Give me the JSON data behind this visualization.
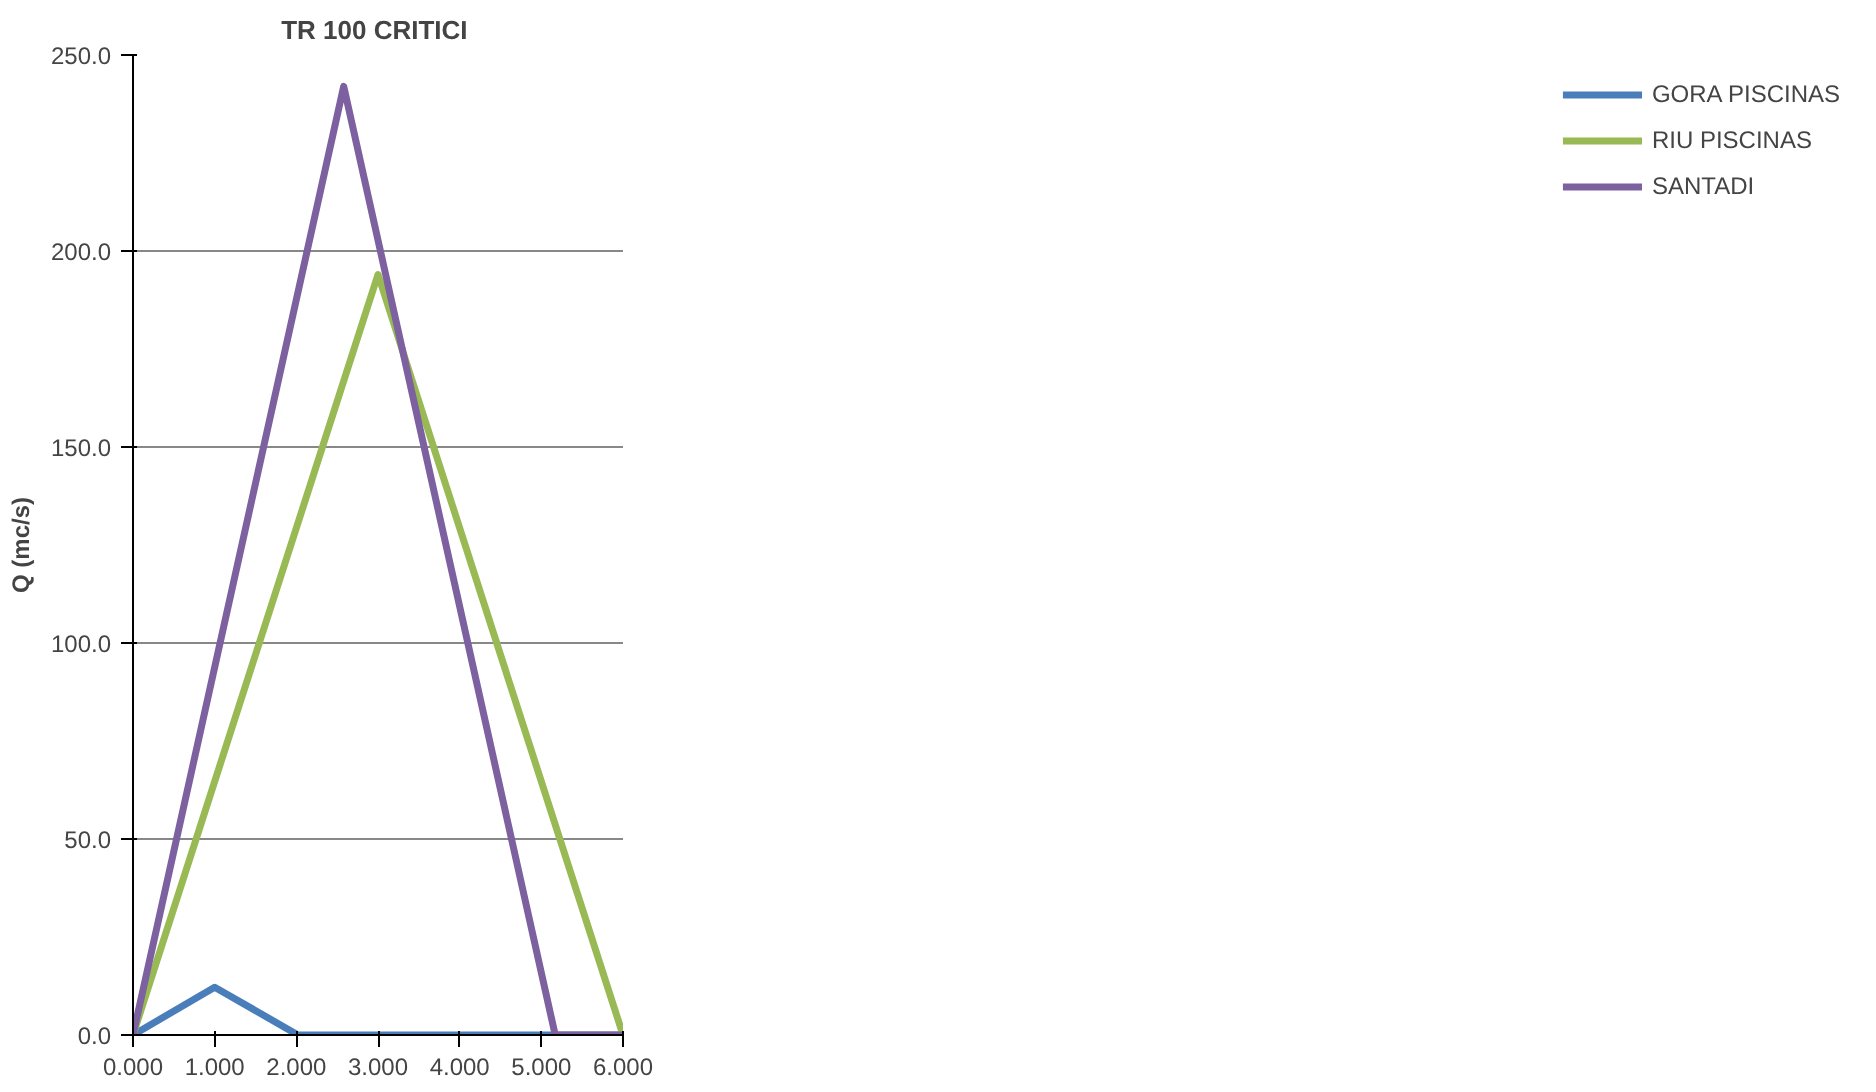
{
  "chart_data": {
    "type": "line",
    "title": "TR 100  CRITICI",
    "ylabel": "Q (mc/s)",
    "xlim": [
      0,
      6
    ],
    "xticks": [
      {
        "value": 0,
        "label": "0.000"
      },
      {
        "value": 1,
        "label": "1.000"
      },
      {
        "value": 2,
        "label": "2.000"
      },
      {
        "value": 3,
        "label": "3.000"
      },
      {
        "value": 4,
        "label": "4.000"
      },
      {
        "value": 5,
        "label": "5.000"
      },
      {
        "value": 6,
        "label": "6.000"
      }
    ],
    "ylim": [
      0,
      250
    ],
    "yticks": [
      {
        "value": 0,
        "label": "0.0"
      },
      {
        "value": 50,
        "label": "50.0"
      },
      {
        "value": 100,
        "label": "100.0"
      },
      {
        "value": 150,
        "label": "150.0"
      },
      {
        "value": 200,
        "label": "200.0"
      },
      {
        "value": 250,
        "label": "250.0"
      }
    ],
    "grid": "y",
    "legend": "right",
    "marker": "none",
    "line_style": "solid",
    "series": [
      {
        "name": "GORA PISCINAS",
        "color": "#4a7ebb",
        "x": [
          0,
          1.0,
          2.02,
          6.0
        ],
        "values": [
          0,
          12.2,
          0,
          0
        ]
      },
      {
        "name": "RIU PISCINAS",
        "color": "#98b954",
        "x": [
          0,
          3.0,
          6.0
        ],
        "values": [
          0,
          194,
          0
        ]
      },
      {
        "name": "SANTADI",
        "color": "#7d60a0",
        "x": [
          0,
          2.58,
          5.17,
          6.0
        ],
        "values": [
          0,
          242,
          0,
          0
        ]
      }
    ]
  }
}
